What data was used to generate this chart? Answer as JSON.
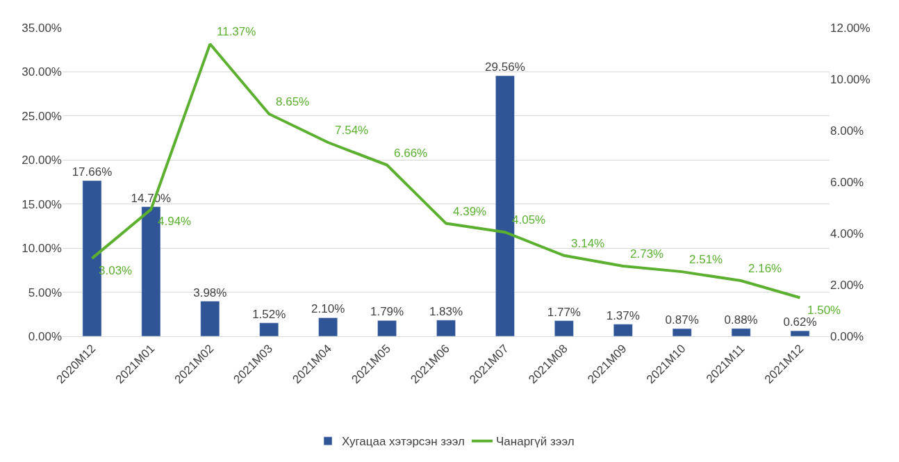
{
  "chart_data": {
    "type": "bar",
    "categories": [
      "2020M12",
      "2021M01",
      "2021M02",
      "2021M03",
      "2021M04",
      "2021M05",
      "2021M06",
      "2021M07",
      "2021M08",
      "2021M09",
      "2021M10",
      "2021M11",
      "2021M12"
    ],
    "series": [
      {
        "name": "Хугацаа хэтэрсэн зээл",
        "color": "#2f5597",
        "values": [
          17.66,
          14.7,
          3.98,
          1.52,
          2.1,
          1.79,
          1.83,
          29.56,
          1.77,
          1.37,
          0.87,
          0.88,
          0.62
        ],
        "value_labels": [
          "17.66%",
          "14.70%",
          "3.98%",
          "1.52%",
          "2.10%",
          "1.79%",
          "1.83%",
          "29.56%",
          "1.77%",
          "1.37%",
          "0.87%",
          "0.88%",
          "0.62%"
        ]
      },
      {
        "name": "Чанаргүй зээл",
        "type": "line",
        "axis": "y2",
        "color": "#5bb030",
        "values": [
          3.03,
          4.94,
          11.37,
          8.65,
          7.54,
          6.66,
          4.39,
          4.05,
          3.14,
          2.73,
          2.51,
          2.16,
          1.5
        ],
        "value_labels": [
          "3.03%",
          "4.94%",
          "11.37%",
          "8.65%",
          "7.54%",
          "6.66%",
          "4.39%",
          "4.05%",
          "3.14%",
          "2.73%",
          "2.51%",
          "2.16%",
          "1.50%"
        ]
      }
    ],
    "ylim": [
      0,
      35
    ],
    "yticks": [
      {
        "value": 0,
        "label": "0.00%"
      },
      {
        "value": 5,
        "label": "5.00%"
      },
      {
        "value": 10,
        "label": "10.00%"
      },
      {
        "value": 15,
        "label": "15.00%"
      },
      {
        "value": 20,
        "label": "20.00%"
      },
      {
        "value": 25,
        "label": "25.00%"
      },
      {
        "value": 30,
        "label": "30.00%"
      },
      {
        "value": 35,
        "label": "35.00%"
      }
    ],
    "y2lim": [
      0,
      12
    ],
    "y2ticks": [
      {
        "value": 0,
        "label": "0.00%"
      },
      {
        "value": 2,
        "label": "2.00%"
      },
      {
        "value": 4,
        "label": "4.00%"
      },
      {
        "value": 6,
        "label": "6.00%"
      },
      {
        "value": 8,
        "label": "8.00%"
      },
      {
        "value": 10,
        "label": "10.00%"
      },
      {
        "value": 12,
        "label": "12.00%"
      }
    ],
    "grid": "y",
    "legend": "bottom",
    "marker": "none",
    "line_style": "solid"
  }
}
